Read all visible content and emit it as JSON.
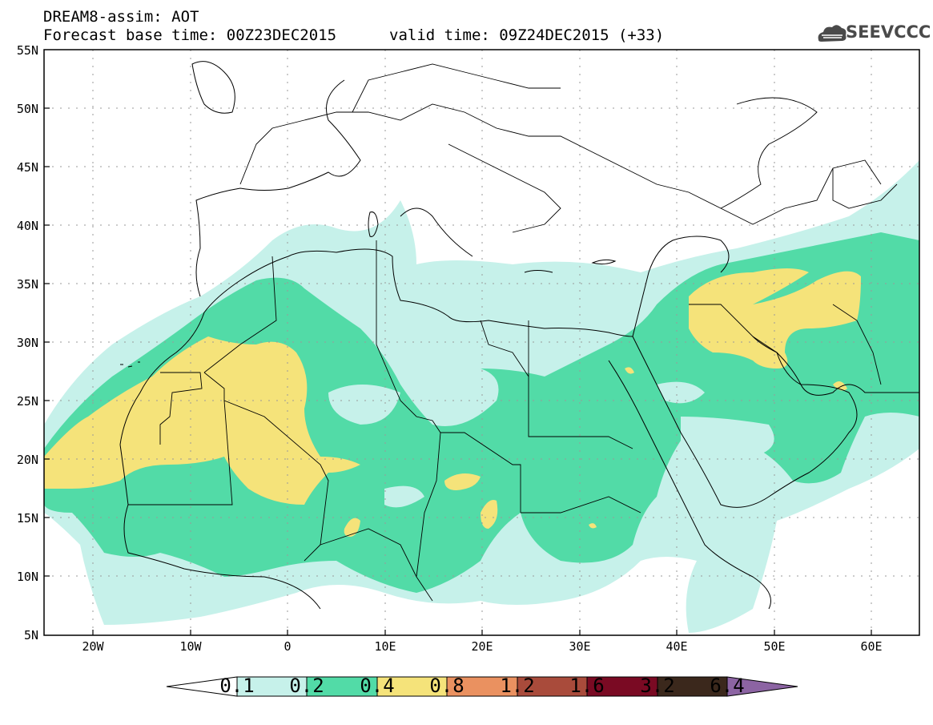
{
  "header": {
    "title": "DREAM8-assim: AOT",
    "base_time": "Forecast base time: 00Z23DEC2015",
    "valid_time": "valid time: 09Z24DEC2015 (+33)"
  },
  "logo": {
    "text": "SEEVCCC"
  },
  "axes": {
    "lat_labels": [
      "55N",
      "50N",
      "45N",
      "40N",
      "35N",
      "30N",
      "25N",
      "20N",
      "15N",
      "10N",
      "5N"
    ],
    "lon_labels": [
      "20W",
      "10W",
      "0",
      "10E",
      "20E",
      "30E",
      "40E",
      "50E",
      "60E"
    ]
  },
  "colorbar": {
    "labels": [
      "0.1",
      "0.2",
      "0.4",
      "0.8",
      "1.2",
      "1.6",
      "3.2",
      "6.4"
    ],
    "colors": [
      "#c6f1ea",
      "#52dba7",
      "#f5e37a",
      "#ea9160",
      "#a94b3b",
      "#7a0a23",
      "#3b281c",
      "#8c64a3"
    ]
  },
  "map_colors": {
    "land": "#ffffff",
    "coast": "#000000",
    "grid": "#9a9a9a"
  }
}
